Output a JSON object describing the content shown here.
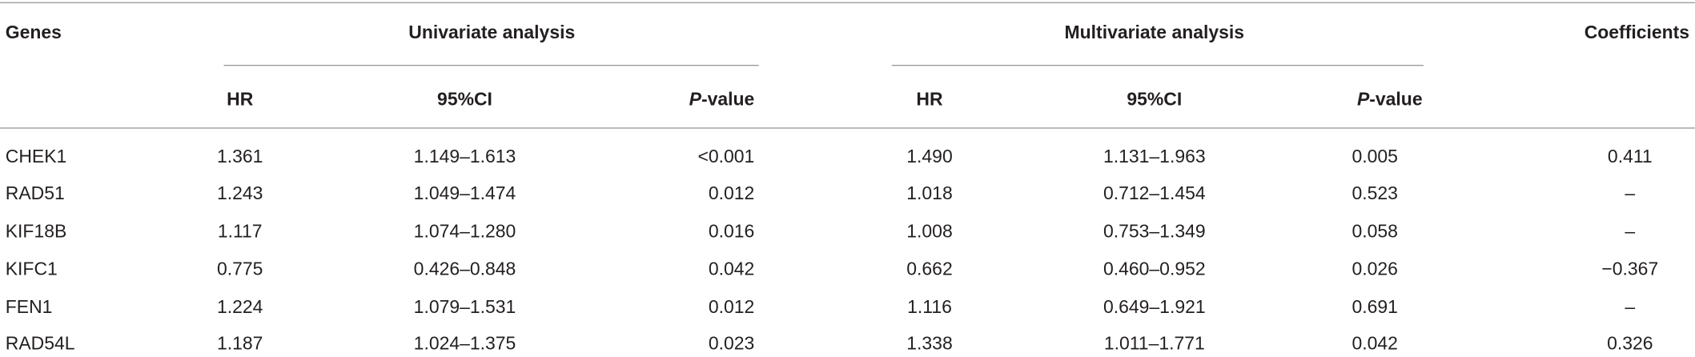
{
  "table": {
    "header": {
      "genes": "Genes",
      "groups": [
        "Univariate analysis",
        "Multivariate analysis"
      ],
      "coefficients": "Coefficients",
      "columns": [
        "HR",
        "95%CI",
        "P-value",
        "HR",
        "95%CI",
        "P-value"
      ]
    },
    "rows": [
      [
        "CHEK1",
        "1.361",
        "1.149–1.613",
        "<0.001",
        "1.490",
        "1.131–1.963",
        "0.005",
        "0.411"
      ],
      [
        "RAD51",
        "1.243",
        "1.049–1.474",
        "0.012",
        "1.018",
        "0.712–1.454",
        "0.523",
        "–"
      ],
      [
        "KIF18B",
        "1.117",
        "1.074–1.280",
        "0.016",
        "1.008",
        "0.753–1.349",
        "0.058",
        "–"
      ],
      [
        "KIFC1",
        "0.775",
        "0.426–0.848",
        "0.042",
        "0.662",
        "0.460–0.952",
        "0.026",
        "−0.367"
      ],
      [
        "FEN1",
        "1.224",
        "1.079–1.531",
        "0.012",
        "1.116",
        "0.649–1.921",
        "0.691",
        "–"
      ],
      [
        "RAD54L",
        "1.187",
        "1.024–1.375",
        "0.023",
        "1.338",
        "1.011–1.771",
        "0.042",
        "0.326"
      ]
    ]
  }
}
